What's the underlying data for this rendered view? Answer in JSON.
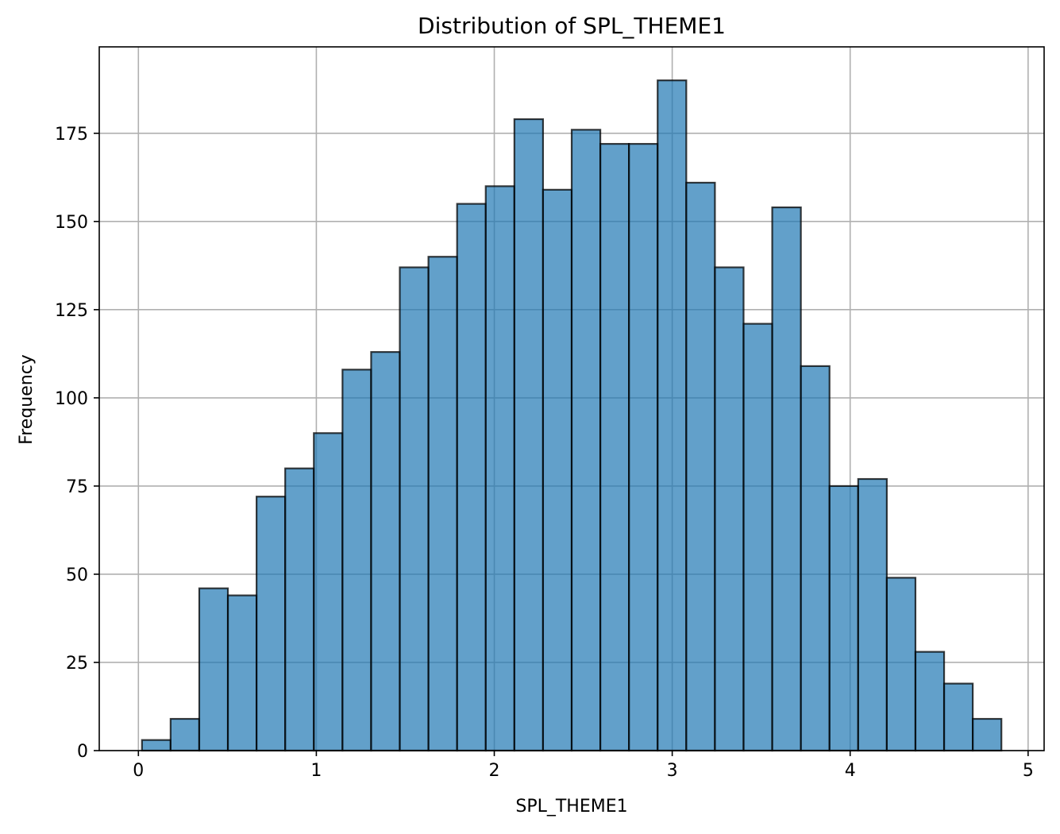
{
  "chart_data": {
    "type": "bar",
    "title": "Distribution of SPL_THEME1",
    "xlabel": "SPL_THEME1",
    "ylabel": "Frequency",
    "bin_edges": [
      0.02,
      0.181,
      0.342,
      0.503,
      0.664,
      0.825,
      0.986,
      1.147,
      1.308,
      1.469,
      1.63,
      1.791,
      1.952,
      2.113,
      2.274,
      2.435,
      2.596,
      2.757,
      2.918,
      3.079,
      3.24,
      3.401,
      3.562,
      3.723,
      3.884,
      4.045,
      4.206,
      4.367,
      4.528,
      4.689,
      4.85
    ],
    "values": [
      3,
      9,
      46,
      44,
      72,
      80,
      90,
      108,
      113,
      137,
      140,
      155,
      160,
      179,
      159,
      176,
      172,
      172,
      190,
      161,
      137,
      121,
      154,
      109,
      75,
      77,
      49,
      28,
      19,
      9
    ],
    "xlim": [
      -0.22,
      5.09
    ],
    "ylim": [
      0,
      199.5
    ],
    "xticks": [
      0,
      1,
      2,
      3,
      4,
      5
    ],
    "xtick_labels": [
      "0",
      "1",
      "2",
      "3",
      "4",
      "5"
    ],
    "yticks": [
      0,
      25,
      50,
      75,
      100,
      125,
      150,
      175
    ],
    "ytick_labels": [
      "0",
      "25",
      "50",
      "75",
      "100",
      "125",
      "150",
      "175"
    ],
    "grid": true,
    "bar_color": "#1f77b4",
    "bar_opacity": 0.7,
    "edge_color": "#000000"
  }
}
